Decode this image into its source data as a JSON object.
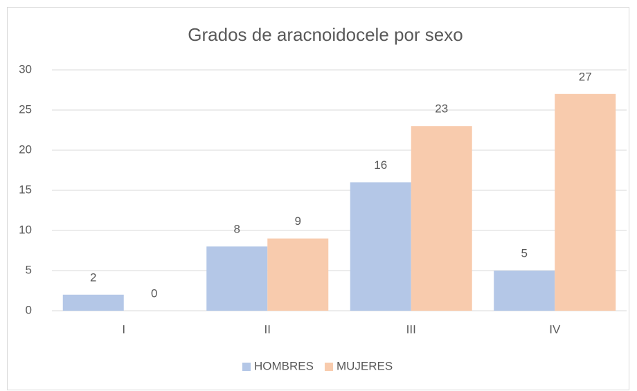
{
  "chart_data": {
    "type": "bar",
    "title": "Grados de aracnoidocele por sexo",
    "categories": [
      "I",
      "II",
      "III",
      "IV"
    ],
    "series": [
      {
        "name": "HOMBRES",
        "color": "#b4c7e7",
        "values": [
          2,
          8,
          16,
          5
        ]
      },
      {
        "name": "MUJERES",
        "color": "#f8cbad",
        "values": [
          0,
          9,
          23,
          27
        ]
      }
    ],
    "ylim": [
      0,
      30
    ],
    "yticks": [
      0,
      5,
      10,
      15,
      20,
      25,
      30
    ],
    "grid": true,
    "legend": "bottom",
    "data_labels": true
  }
}
